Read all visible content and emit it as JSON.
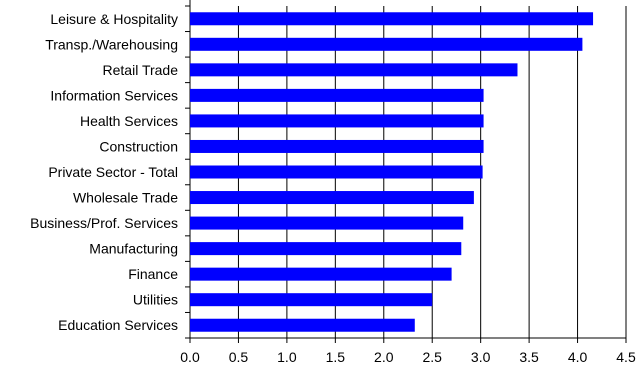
{
  "chart_data": {
    "type": "bar",
    "orientation": "horizontal",
    "categories": [
      "Leisure & Hospitality",
      "Transp./Warehousing",
      "Retail Trade",
      "Information Services",
      "Health Services",
      "Construction",
      "Private Sector - Total",
      "Wholesale Trade",
      "Business/Prof. Services",
      "Manufacturing",
      "Finance",
      "Utilities",
      "Education Services"
    ],
    "values": [
      4.16,
      4.05,
      3.38,
      3.03,
      3.03,
      3.03,
      3.02,
      2.93,
      2.82,
      2.8,
      2.7,
      2.5,
      2.32
    ],
    "xlim": [
      0,
      4.5
    ],
    "x_ticks": [
      "0.0",
      "0.5",
      "1.0",
      "1.5",
      "2.0",
      "2.5",
      "3.0",
      "3.5",
      "4.0",
      "4.5"
    ],
    "title": "",
    "xlabel": "",
    "ylabel": "",
    "grid": "vertical",
    "bar_color": "#0000FF",
    "gridline_color": "#000000",
    "legend": "none"
  }
}
